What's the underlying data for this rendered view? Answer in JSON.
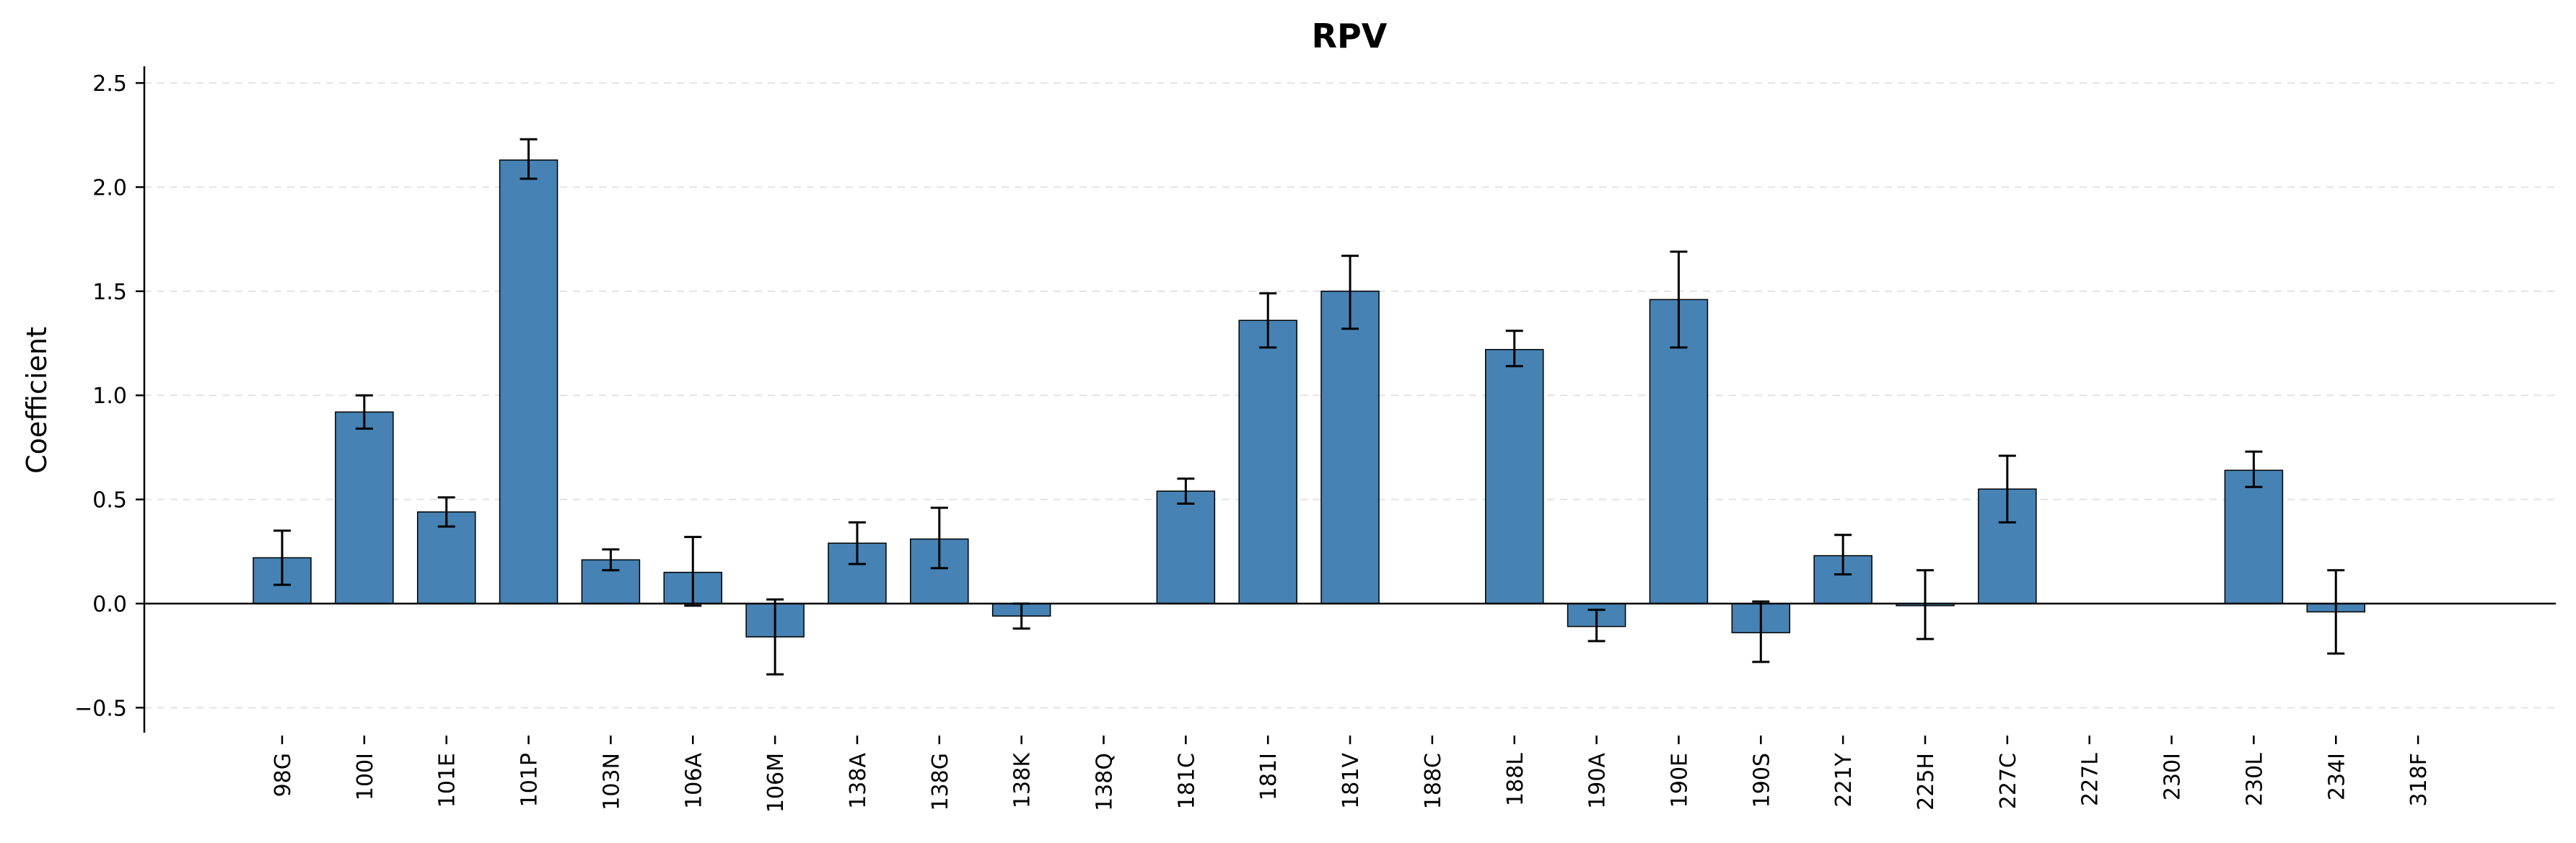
{
  "chart_data": {
    "type": "bar",
    "title": "RPV",
    "xlabel": "",
    "ylabel": "Coefficient",
    "ylim": [
      -0.62,
      2.58
    ],
    "yticks": [
      -0.5,
      0.0,
      0.5,
      1.0,
      1.5,
      2.0,
      2.5
    ],
    "ytick_labels": [
      "−0.5",
      "0.0",
      "0.5",
      "1.0",
      "1.5",
      "2.0",
      "2.5"
    ],
    "grid": "y-dashed",
    "bar_color": "#4682b4",
    "categories": [
      "98G",
      "100I",
      "101E",
      "101P",
      "103N",
      "106A",
      "106M",
      "138A",
      "138G",
      "138K",
      "138Q",
      "181C",
      "181I",
      "181V",
      "188C",
      "188L",
      "190A",
      "190E",
      "190S",
      "221Y",
      "225H",
      "227C",
      "227L",
      "230I",
      "230L",
      "234I",
      "318F"
    ],
    "values": [
      0.22,
      0.92,
      0.44,
      2.13,
      0.21,
      0.15,
      -0.16,
      0.29,
      0.31,
      -0.06,
      0.0,
      0.54,
      1.36,
      1.5,
      0.0,
      1.22,
      -0.11,
      1.46,
      -0.14,
      0.23,
      -0.01,
      0.55,
      0.0,
      0.0,
      0.64,
      -0.04,
      0.0
    ],
    "err_low": [
      0.09,
      0.84,
      0.37,
      2.04,
      0.16,
      -0.01,
      -0.34,
      0.19,
      0.17,
      -0.12,
      0.0,
      0.48,
      1.23,
      1.32,
      0.0,
      1.14,
      -0.18,
      1.23,
      -0.28,
      0.14,
      -0.17,
      0.39,
      0.0,
      0.0,
      0.56,
      -0.24,
      0.0
    ],
    "err_high": [
      0.35,
      1.0,
      0.51,
      2.23,
      0.26,
      0.32,
      0.02,
      0.39,
      0.46,
      0.0,
      0.0,
      0.6,
      1.49,
      1.67,
      0.0,
      1.31,
      -0.03,
      1.69,
      0.01,
      0.33,
      0.16,
      0.71,
      0.0,
      0.0,
      0.73,
      0.16,
      0.0
    ]
  }
}
